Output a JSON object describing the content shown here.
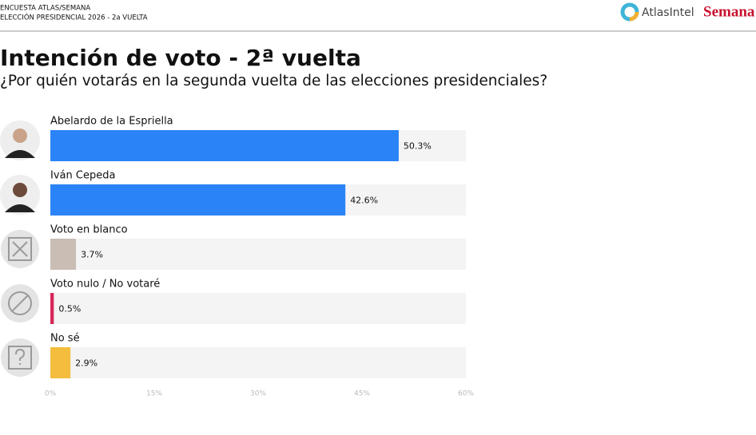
{
  "header": {
    "line1": "ENCUESTA ATLAS/SEMANA",
    "line2": "ELECCIÓN PRESIDENCIAL 2026 - 2a VUELTA",
    "logo1": "AtlasIntel",
    "logo2": "Semana"
  },
  "chart_data": {
    "type": "hbar",
    "title": "Intención de voto - 2ª vuelta",
    "subtitle": "¿Por quién votarás en la segunda vuelta de las elecciones presidenciales?",
    "categories": [
      "Abelardo de la Espriella",
      "Iván Cepeda",
      "Voto en blanco",
      "Voto nulo / No votaré",
      "No sé"
    ],
    "values": [
      50.3,
      42.6,
      3.7,
      0.5,
      2.9
    ],
    "value_labels": [
      "50.3%",
      "42.6%",
      "3.7%",
      "0.5%",
      "2.9%"
    ],
    "colors": [
      "#2b84f7",
      "#2b84f7",
      "#c9bdb4",
      "#d6285a",
      "#f4bd3d"
    ],
    "xlim": [
      0,
      60
    ],
    "xticks": [
      {
        "value": 0,
        "label": "0%"
      },
      {
        "value": 15,
        "label": "15%"
      },
      {
        "value": 30,
        "label": "30%"
      },
      {
        "value": 45,
        "label": "45%"
      },
      {
        "value": 60,
        "label": "60%"
      }
    ]
  }
}
